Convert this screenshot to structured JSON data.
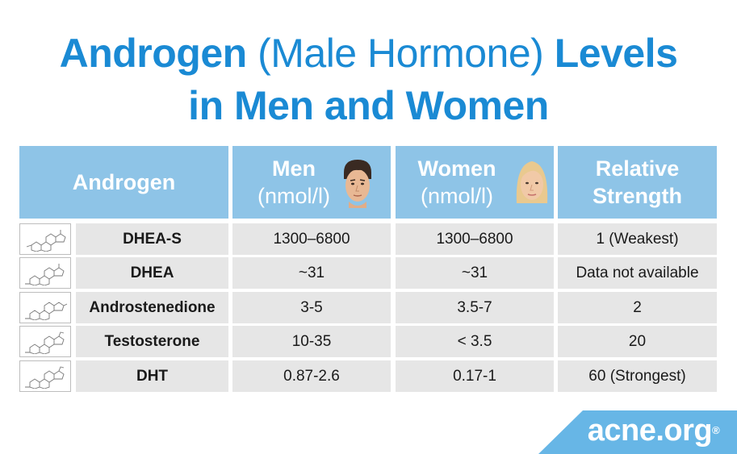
{
  "title": {
    "line1_bold_a": "Androgen",
    "line1_light": "(Male Hormone)",
    "line1_bold_b": "Levels",
    "line2": "in Men and Women"
  },
  "table": {
    "headers": {
      "androgen": "Androgen",
      "men": "Men",
      "men_unit": "(nmol/l)",
      "women": "Women",
      "women_unit": "(nmol/l)",
      "strength_l1": "Relative",
      "strength_l2": "Strength"
    },
    "rows": [
      {
        "name": "DHEA-S",
        "men": "1300–6800",
        "women": "1300–6800",
        "strength": "1 (Weakest)"
      },
      {
        "name": "DHEA",
        "men": "~31",
        "women": "~31",
        "strength": "Data not available"
      },
      {
        "name": "Androstenedione",
        "men": "3-5",
        "women": "3.5-7",
        "strength": "2"
      },
      {
        "name": "Testosterone",
        "men": "10-35",
        "women": "< 3.5",
        "strength": "20"
      },
      {
        "name": "DHT",
        "men": "0.87-2.6",
        "women": "0.17-1",
        "strength": "60 (Strongest)"
      }
    ]
  },
  "logo": {
    "text": "acne.org",
    "mark": "®"
  },
  "colors": {
    "accent": "#1a8ad4",
    "header_bg": "#8ec4e7",
    "cell_bg": "#e6e6e6",
    "logo_bg": "#67b6e6"
  },
  "icons": {
    "men_face": "man-face-icon",
    "women_face": "woman-face-icon",
    "structure": "steroid-structure-icon"
  }
}
